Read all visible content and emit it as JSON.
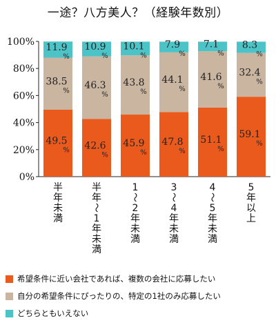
{
  "title": "一途？八方美人？（経験年数別）",
  "chart_data": {
    "type": "bar",
    "stacked": true,
    "orientation": "vertical",
    "title": "一途？八方美人？（経験年数別）",
    "xlabel": "",
    "ylabel": "",
    "ylim": [
      0,
      100
    ],
    "y_ticks": [
      "0%",
      "20%",
      "40%",
      "60%",
      "80%",
      "100%"
    ],
    "y_tick_values": [
      0,
      20,
      40,
      60,
      80,
      100
    ],
    "categories": [
      "半年未満",
      "半年〜1年未満",
      "1〜2年未満",
      "3〜4年未満",
      "4〜5年未満",
      "5年以上"
    ],
    "series": [
      {
        "name": "希望条件に近い会社であれば、複数の会社に応募したい",
        "color": "#ea5a1c",
        "values": [
          49.5,
          42.6,
          45.9,
          47.8,
          51.1,
          59.1
        ]
      },
      {
        "name": "自分の希望条件にぴったりの、特定の1社のみ応募したい",
        "color": "#c9b5a0",
        "values": [
          38.5,
          46.3,
          43.8,
          44.1,
          41.6,
          32.4
        ]
      },
      {
        "name": "どちらともいえない",
        "color": "#4cc3c6",
        "values": [
          11.9,
          10.9,
          10.1,
          7.9,
          7.1,
          8.3
        ]
      }
    ],
    "value_unit": "%",
    "grid": false,
    "legend_position": "bottom"
  }
}
